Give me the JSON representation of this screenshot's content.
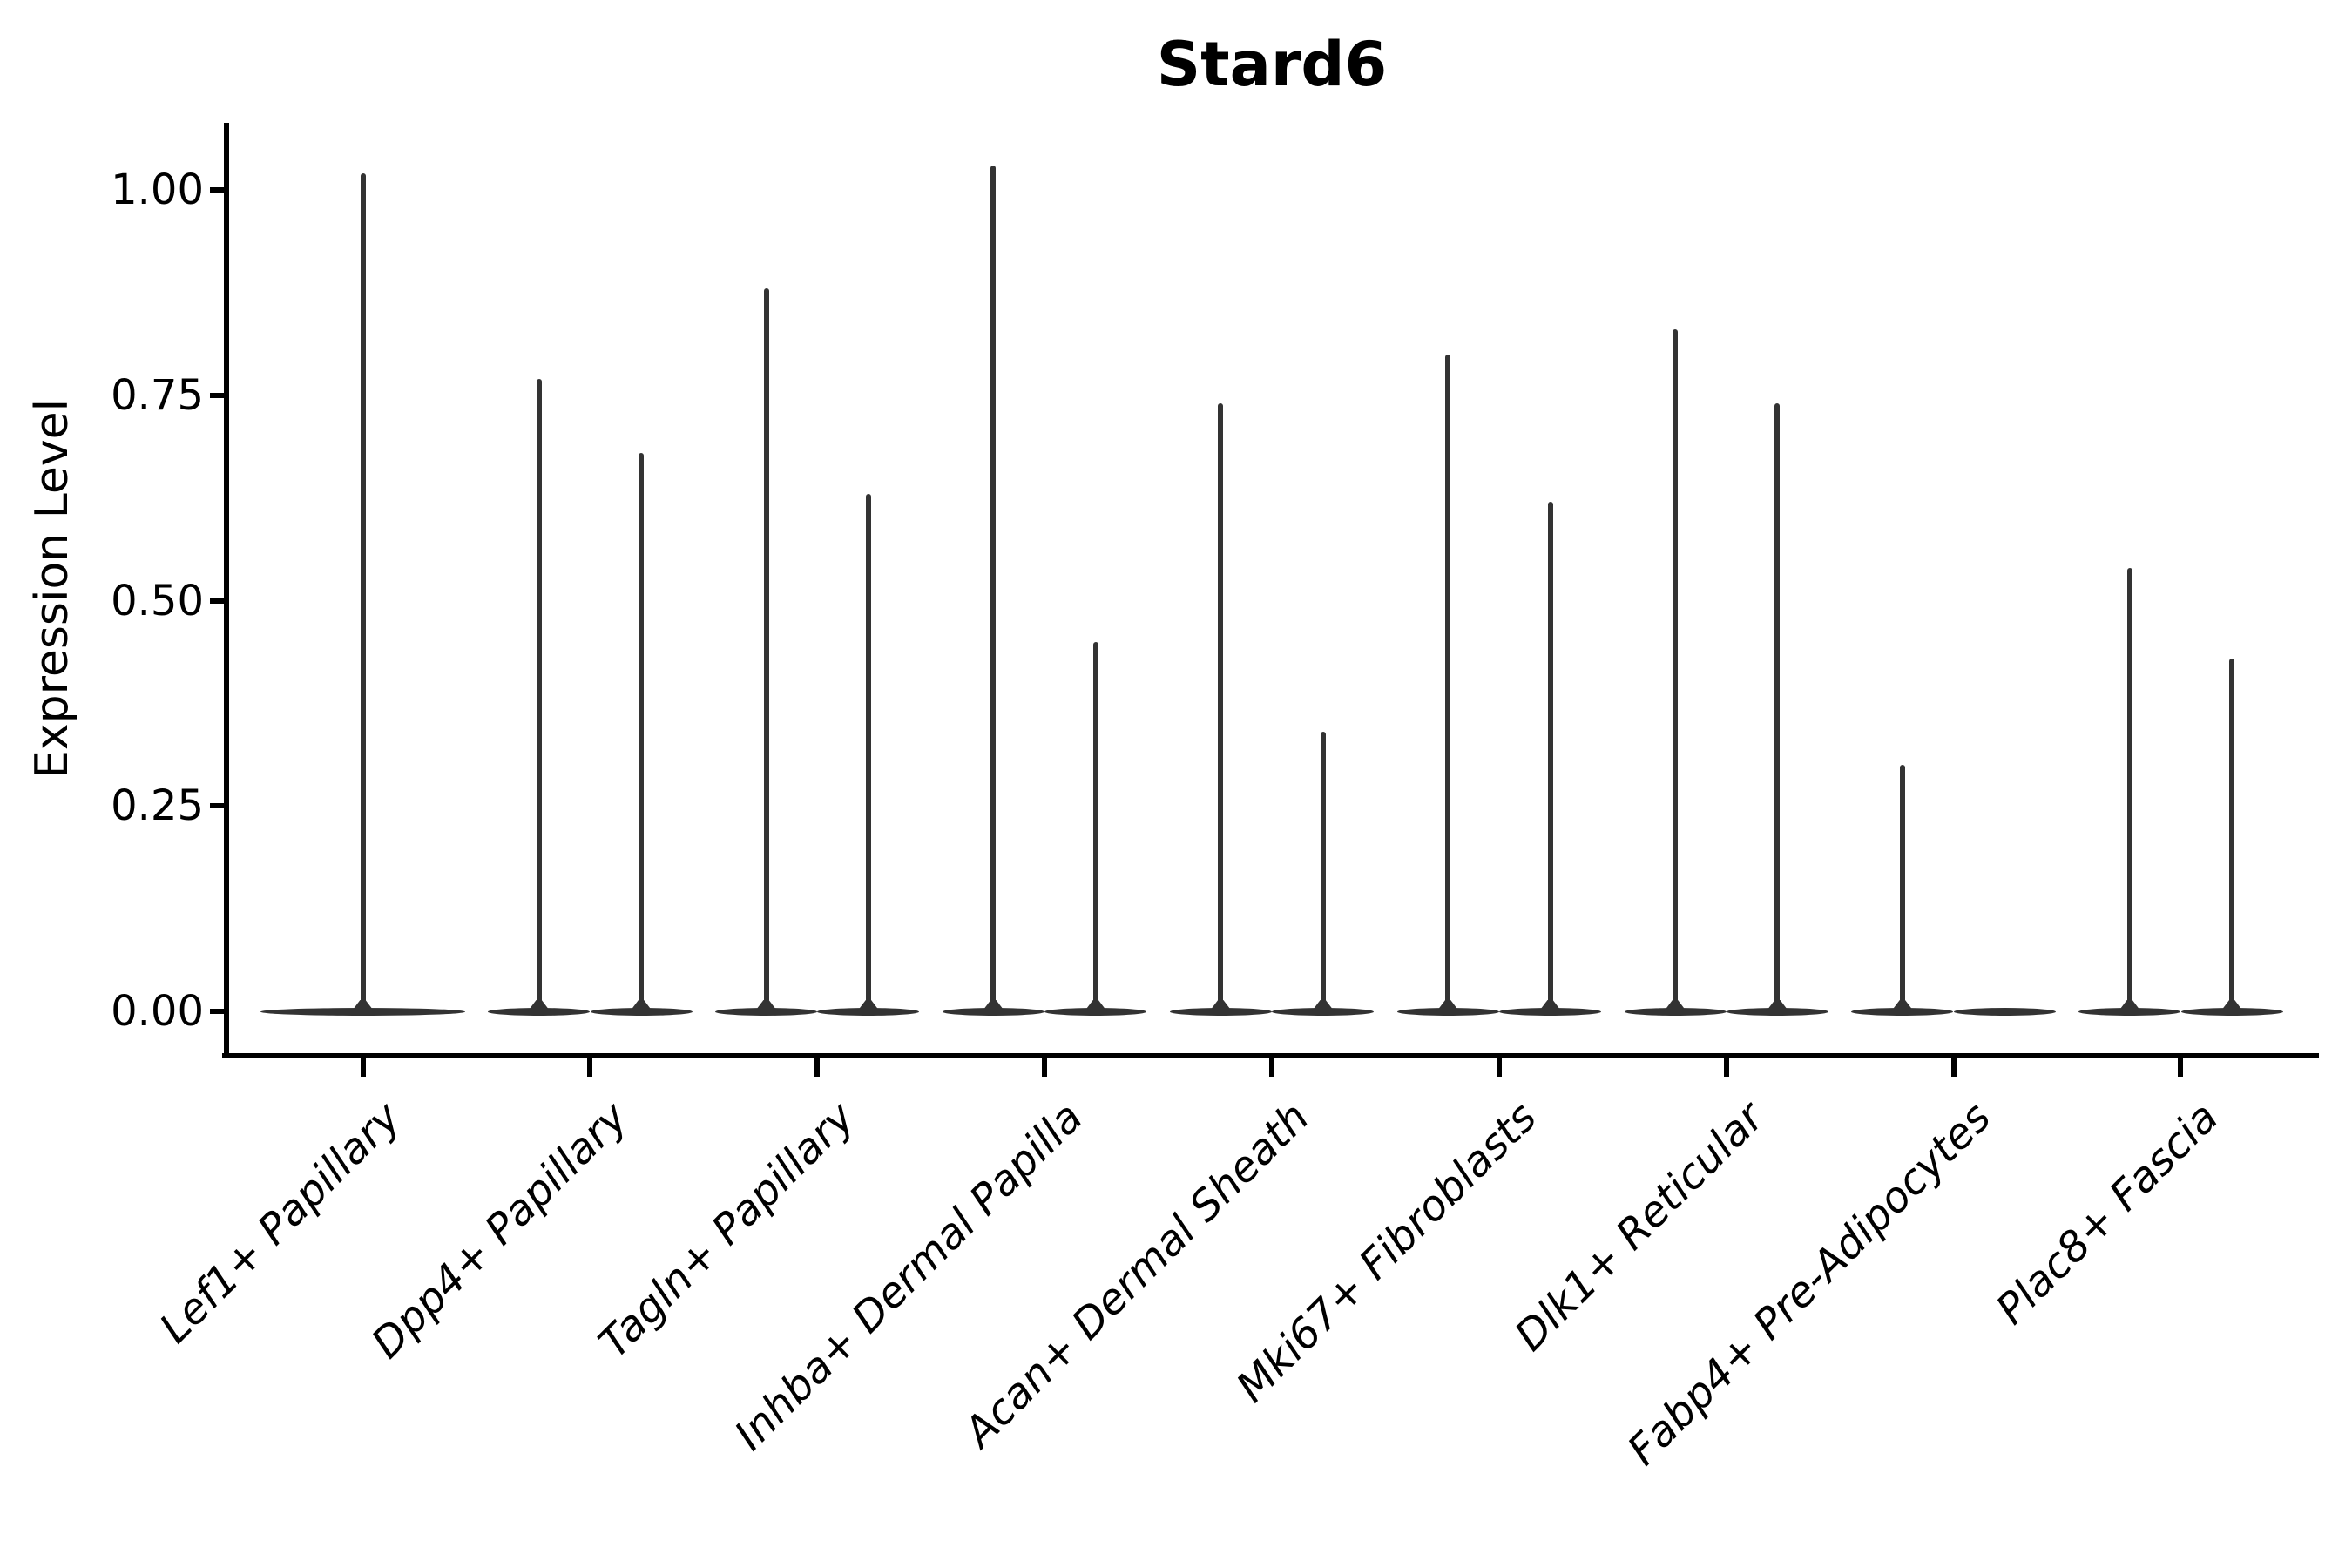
{
  "chart_data": {
    "type": "violin",
    "title": "Stard6",
    "xlabel": "",
    "ylabel": "Expression Level",
    "ylim": [
      0,
      1.08
    ],
    "grid": false,
    "legend": null,
    "violin_color": "#333333",
    "axis_color": "#000000",
    "yticks": [
      {
        "label": "1.00",
        "value": 1.0
      },
      {
        "label": "0.75",
        "value": 0.75
      },
      {
        "label": "0.50",
        "value": 0.5
      },
      {
        "label": "0.25",
        "value": 0.25
      },
      {
        "label": "0.00",
        "value": 0.0
      }
    ],
    "categories": [
      {
        "label": "Lef1+ Papillary",
        "violins": [
          {
            "position": "full",
            "max": 1.02
          }
        ]
      },
      {
        "label": "Dpp4+ Papillary",
        "violins": [
          {
            "position": "left",
            "max": 0.77
          },
          {
            "position": "right",
            "max": 0.68
          }
        ]
      },
      {
        "label": "Tagln+ Papillary",
        "violins": [
          {
            "position": "left",
            "max": 0.88
          },
          {
            "position": "right",
            "max": 0.63
          }
        ]
      },
      {
        "label": "Inhba+ Dermal Papilla",
        "violins": [
          {
            "position": "left",
            "max": 1.03
          },
          {
            "position": "right",
            "max": 0.45
          }
        ]
      },
      {
        "label": "Acan+ Dermal Sheath",
        "violins": [
          {
            "position": "left",
            "max": 0.74
          },
          {
            "position": "right",
            "max": 0.34
          }
        ]
      },
      {
        "label": "Mki67+ Fibroblasts",
        "violins": [
          {
            "position": "left",
            "max": 0.8
          },
          {
            "position": "right",
            "max": 0.62
          }
        ]
      },
      {
        "label": "Dlk1+ Reticular",
        "violins": [
          {
            "position": "left",
            "max": 0.83
          },
          {
            "position": "right",
            "max": 0.74
          }
        ]
      },
      {
        "label": "Fabp4+ Pre-Adipocytes",
        "violins": [
          {
            "position": "left",
            "max": 0.3
          },
          {
            "position": "right",
            "max": 0.0
          }
        ]
      },
      {
        "label": "Plac8+ Fascia",
        "violins": [
          {
            "position": "left",
            "max": 0.54
          },
          {
            "position": "right",
            "max": 0.43
          }
        ]
      }
    ]
  }
}
